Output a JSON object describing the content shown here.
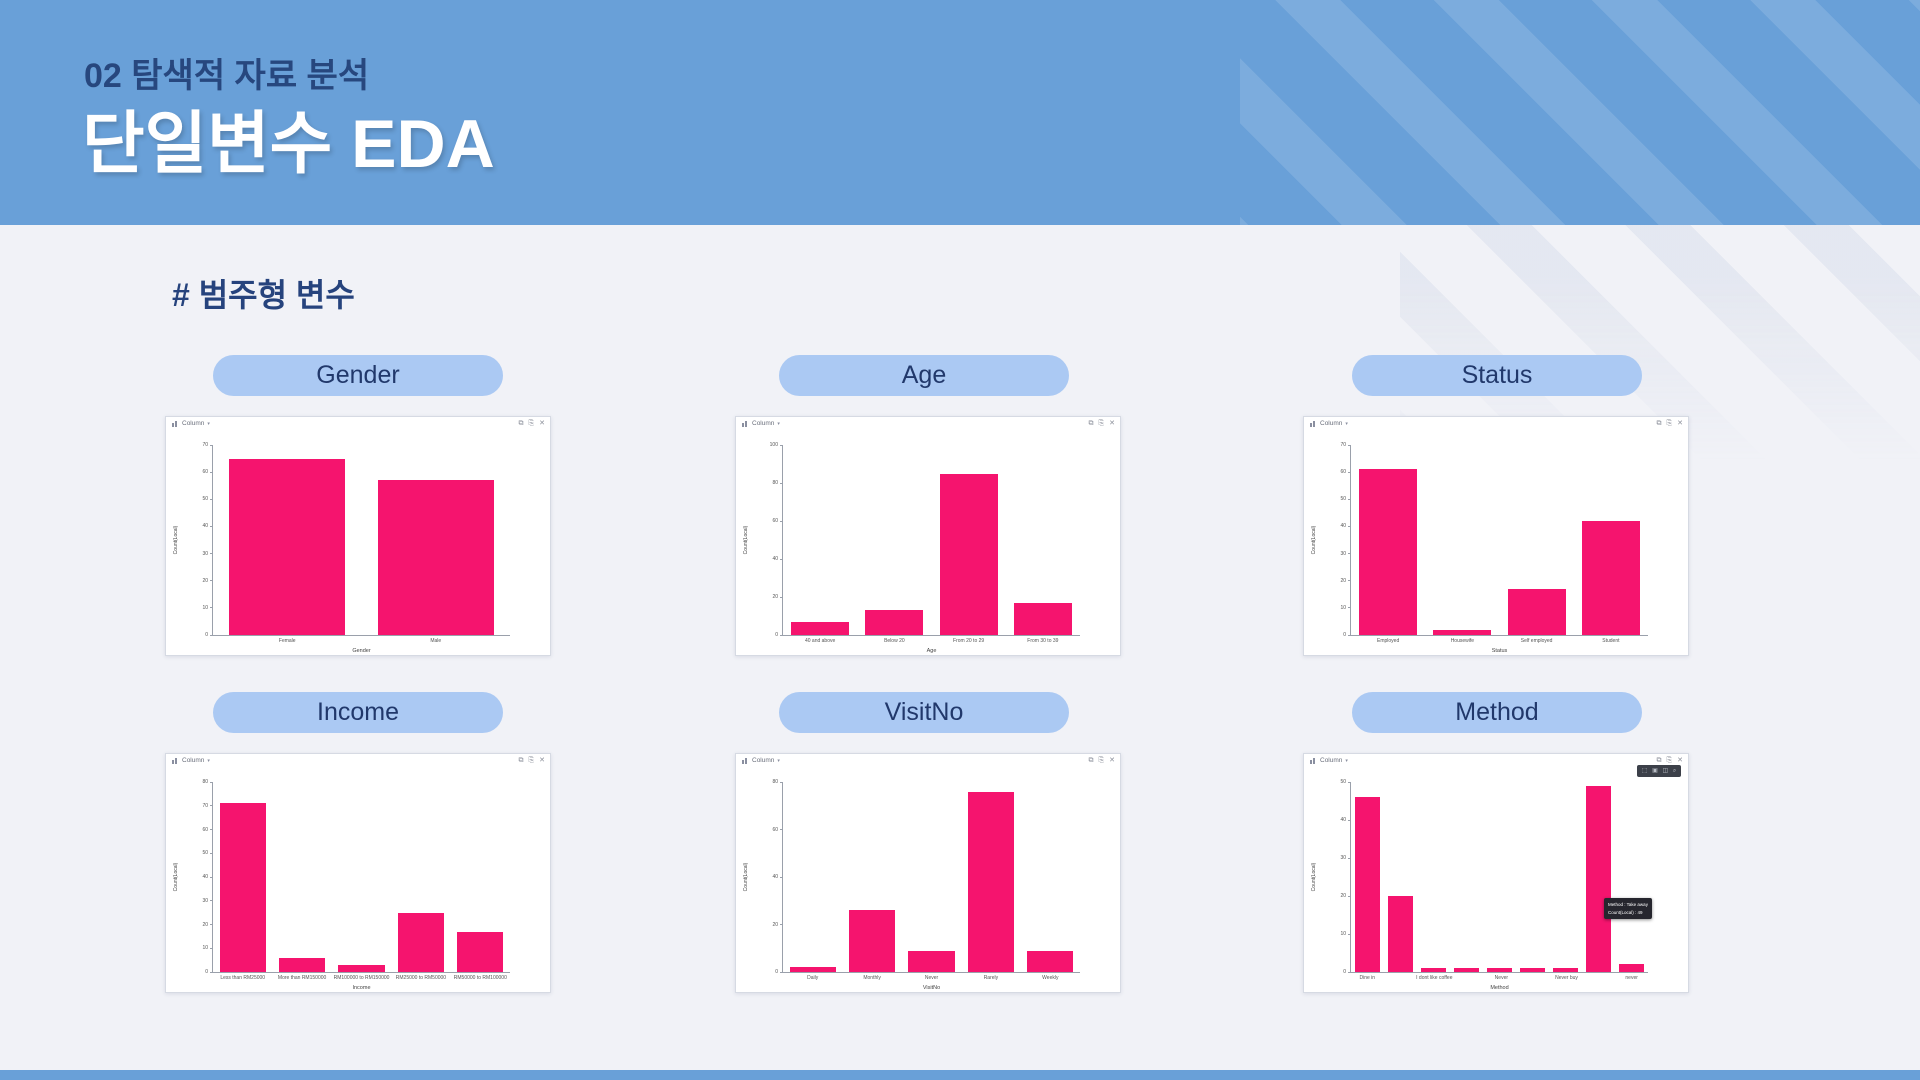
{
  "slide": {
    "kicker": "02 탐색적 자료 분석",
    "title": "단일변수 EDA",
    "section_heading": "# 범주형 변수"
  },
  "colors": {
    "header_blue": "#69a0d8",
    "navy_text": "#27477e",
    "background": "#f1f2f7",
    "pill_bg": "#abc9f3",
    "pill_text": "#21386b",
    "bar_pink": "#f5146e"
  },
  "chart_window": {
    "type_selector_label": "Column",
    "caret": "▾",
    "icons": {
      "copy": "⧉",
      "export": "⎘",
      "close": "✕"
    },
    "hover_toolbar_icons": [
      "⬚",
      "▣",
      "◫",
      "⌕"
    ]
  },
  "chart_data": [
    {
      "name": "Gender",
      "type": "bar",
      "categories": [
        "Female",
        "Male"
      ],
      "values": [
        65,
        57
      ],
      "xlabel": "Gender",
      "ylabel": "Count(Local)",
      "ylim": [
        0,
        70
      ],
      "ytick_step": 10,
      "grid": false
    },
    {
      "name": "Age",
      "type": "bar",
      "categories": [
        "40 and above",
        "Below 20",
        "From 20 to 29",
        "From 30 to 39"
      ],
      "values": [
        7,
        13,
        85,
        17
      ],
      "xlabel": "Age",
      "ylabel": "Count(Local)",
      "ylim": [
        0,
        100
      ],
      "ytick_step": 20,
      "grid": false
    },
    {
      "name": "Status",
      "type": "bar",
      "categories": [
        "Employed",
        "Housewife",
        "Self employed",
        "Student"
      ],
      "values": [
        61,
        2,
        17,
        42
      ],
      "xlabel": "Status",
      "ylabel": "Count(Local)",
      "ylim": [
        0,
        70
      ],
      "ytick_step": 10,
      "grid": false
    },
    {
      "name": "Income",
      "type": "bar",
      "categories": [
        "Less than RM25000",
        "More than RM150000",
        "RM100000 to RM150000",
        "RM25000 to RM50000",
        "RM50000 to RM100000"
      ],
      "values": [
        71,
        6,
        3,
        25,
        17
      ],
      "xlabel": "Income",
      "ylabel": "Count(Local)",
      "ylim": [
        0,
        80
      ],
      "ytick_step": 10,
      "grid": false
    },
    {
      "name": "VisitNo",
      "type": "bar",
      "categories": [
        "Daily",
        "Monthly",
        "Never",
        "Rarely",
        "Weekly"
      ],
      "values": [
        2,
        26,
        9,
        76,
        9
      ],
      "xlabel": "VisitNo",
      "ylabel": "Count(Local)",
      "ylim": [
        0,
        80
      ],
      "ytick_step": 20,
      "grid": false
    },
    {
      "name": "Method",
      "type": "bar",
      "categories": [
        "Dine in",
        "",
        "I dont like coffee",
        "",
        "Never",
        "",
        "Never buy",
        "",
        "never"
      ],
      "values": [
        46,
        20,
        1,
        1,
        1,
        1,
        1,
        49,
        2
      ],
      "xlabel": "Method",
      "ylabel": "Count(Local)",
      "ylim": [
        0,
        50
      ],
      "ytick_step": 10,
      "grid": false,
      "hover_toolbar": true,
      "tooltip": {
        "line1": "Method :  Take away",
        "line2": "Count(Local) :  49"
      }
    }
  ]
}
